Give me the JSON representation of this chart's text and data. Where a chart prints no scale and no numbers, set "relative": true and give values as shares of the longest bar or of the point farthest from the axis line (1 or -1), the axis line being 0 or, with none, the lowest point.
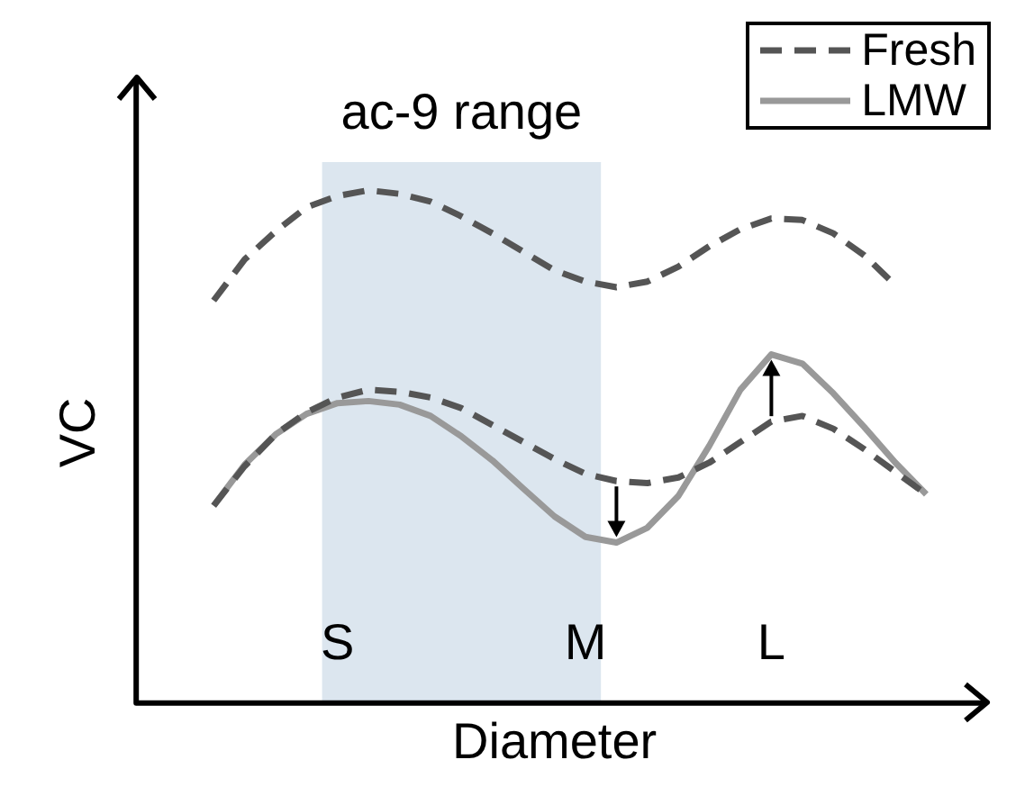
{
  "chart_data": {
    "type": "line",
    "relative": true,
    "xlabel": "Diameter",
    "ylabel": "VC",
    "grid": false,
    "legend": "top right",
    "marker": "none",
    "line_style": "dashed",
    "categories": [
      null,
      null,
      null,
      null,
      null,
      null,
      "S",
      null,
      null,
      null,
      null,
      null,
      null,
      null,
      "M",
      null,
      null,
      null,
      null,
      null,
      "L",
      null,
      null,
      null,
      null,
      null,
      null
    ],
    "series": [
      {
        "name": "Fresh",
        "color": "#555555",
        "values": [
          null,
          null,
          0.785,
          0.865,
          0.92,
          0.967,
          0.989,
          1.0,
          0.993,
          0.978,
          0.949,
          0.916,
          0.88,
          0.844,
          0.822,
          0.811,
          0.822,
          0.851,
          0.891,
          0.924,
          0.945,
          0.942,
          0.916,
          0.873,
          0.815,
          null,
          null
        ]
      },
      {
        "color": "#555555",
        "values": [
          null,
          null,
          0.385,
          0.462,
          0.524,
          0.567,
          0.596,
          0.611,
          0.607,
          0.596,
          0.575,
          0.542,
          0.509,
          0.476,
          0.447,
          0.433,
          0.429,
          0.44,
          0.469,
          0.509,
          0.549,
          0.56,
          0.535,
          0.495,
          0.451,
          0.407,
          null
        ]
      },
      {
        "name": "LMW",
        "color": "#999999",
        "line_style": "solid",
        "values": [
          null,
          null,
          0.385,
          0.465,
          0.524,
          0.564,
          0.585,
          0.589,
          0.582,
          0.56,
          0.52,
          0.473,
          0.418,
          0.364,
          0.324,
          0.313,
          0.342,
          0.404,
          0.502,
          0.611,
          0.68,
          0.662,
          0.604,
          0.538,
          0.469,
          0.407,
          null
        ]
      }
    ],
    "bands": [
      {
        "axis": "x",
        "from": "S",
        "to": "M",
        "label": "ac-9 range",
        "color": "#dce6ef"
      }
    ]
  }
}
